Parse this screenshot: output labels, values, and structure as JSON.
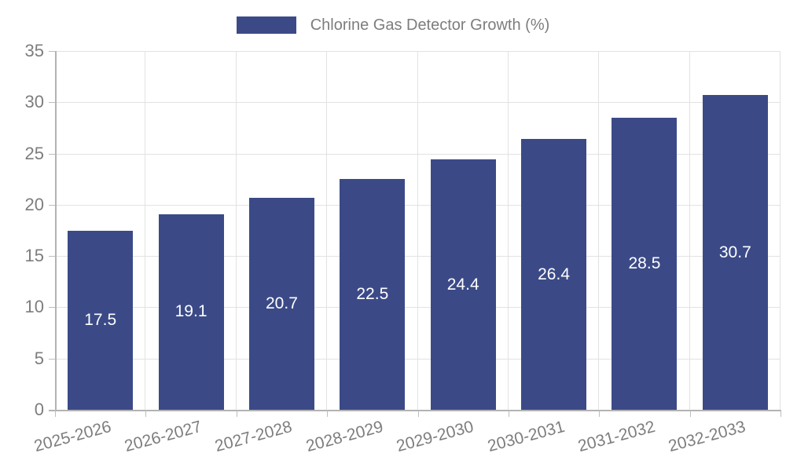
{
  "legend": {
    "label": "Chlorine Gas Detector Growth (%)"
  },
  "chart_data": {
    "type": "bar",
    "title": "Chlorine Gas Detector Growth (%)",
    "categories": [
      "2025-2026",
      "2026-2027",
      "2027-2028",
      "2028-2029",
      "2029-2030",
      "2030-2031",
      "2031-2032",
      "2032-2033"
    ],
    "values": [
      17.5,
      19.1,
      20.7,
      22.5,
      24.4,
      26.4,
      28.5,
      30.7
    ],
    "value_labels": [
      "17.5",
      "19.1",
      "20.7",
      "22.5",
      "24.4",
      "26.4",
      "28.5",
      "30.7"
    ],
    "xlabel": "",
    "ylabel": "",
    "ylim": [
      0,
      35
    ],
    "yticks": [
      0,
      5,
      10,
      15,
      20,
      25,
      30,
      35
    ],
    "grid": true,
    "legend_position": "top-center",
    "colors": {
      "bar": "#3b4a87",
      "value_label": "#ffffff",
      "axis_text": "#7d7d7d",
      "gridline": "#e2e2e2",
      "axis_line": "#b3b3b3"
    }
  }
}
